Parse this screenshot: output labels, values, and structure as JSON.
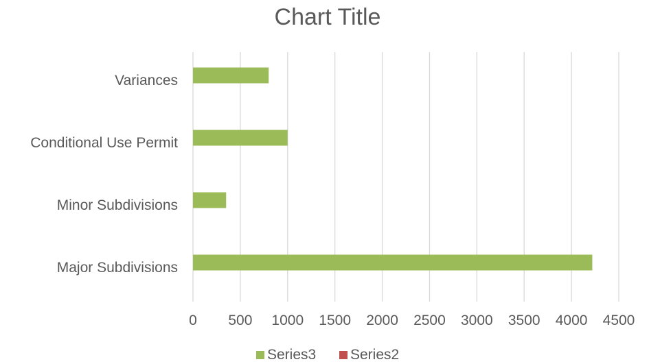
{
  "chart_data": {
    "type": "bar",
    "orientation": "horizontal",
    "title": "Chart Title",
    "xlabel": "",
    "ylabel": "",
    "categories": [
      "Major Subdivisions",
      "Minor Subdivisions",
      "Conditional Use Permit",
      "Variances"
    ],
    "series": [
      {
        "name": "Series3",
        "color": "#9bbb59",
        "values": [
          4220,
          350,
          1000,
          800
        ]
      },
      {
        "name": "Series2",
        "color": "#c0504d",
        "values": [
          0,
          0,
          0,
          0
        ]
      }
    ],
    "xlim": [
      0,
      4500
    ],
    "x_ticks": [
      0,
      500,
      1000,
      1500,
      2000,
      2500,
      3000,
      3500,
      4000,
      4500
    ],
    "grid": true,
    "legend": "bottom"
  }
}
